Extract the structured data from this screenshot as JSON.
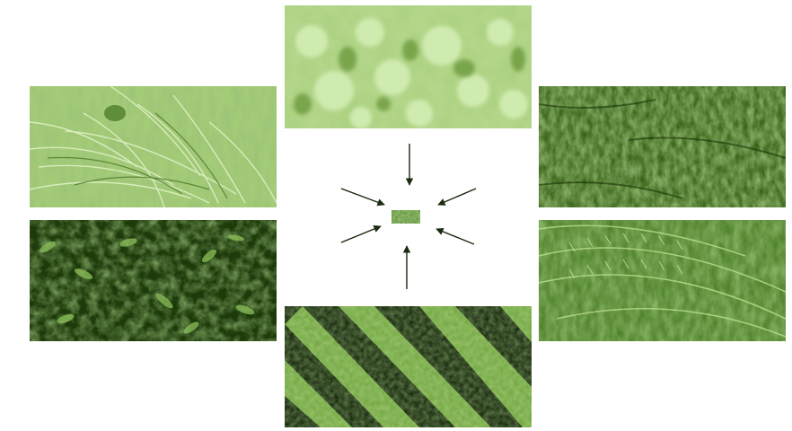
{
  "tiles": [
    {
      "id": "top",
      "texture": "clover-leaves"
    },
    {
      "id": "upper-left",
      "texture": "grass-blades"
    },
    {
      "id": "lower-left",
      "texture": "dense-shrub-leaves"
    },
    {
      "id": "bottom",
      "texture": "crop-rows"
    },
    {
      "id": "upper-right",
      "texture": "mowed-turf"
    },
    {
      "id": "lower-right",
      "texture": "fern-fronds"
    }
  ],
  "colors": {
    "light_green": "#b7d98c",
    "mid_green": "#6ea33d",
    "dark_green": "#2f5a13",
    "very_dark_green": "#0f2204",
    "arrow": "#1a2b10"
  }
}
